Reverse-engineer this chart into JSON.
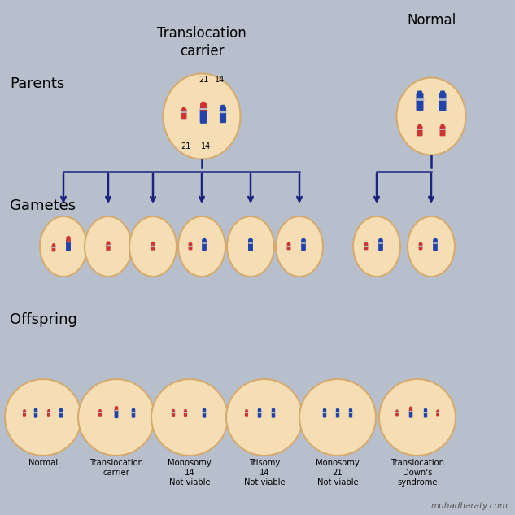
{
  "background_color": "#b8bfcc",
  "oval_color": "#f5deb3",
  "oval_edge_color": "#d4aa70",
  "blue_color": "#2244aa",
  "red_color": "#cc3333",
  "arrow_color": "#1a237e",
  "title": "Translocation\ncarrier",
  "normal_title": "Normal",
  "parents_label": "Parents",
  "gametes_label": "Gametes",
  "offspring_label": "Offspring",
  "watermark": "muhadharaty.com",
  "offspring_labels": [
    "Normal",
    "Translocation\ncarrier",
    "Monosomy\n14\nNot viable",
    "Trisomy\n14\nNot viable",
    "Monosomy\n21\nNot viable",
    "Translocation\nDown's\nsyndrome"
  ]
}
